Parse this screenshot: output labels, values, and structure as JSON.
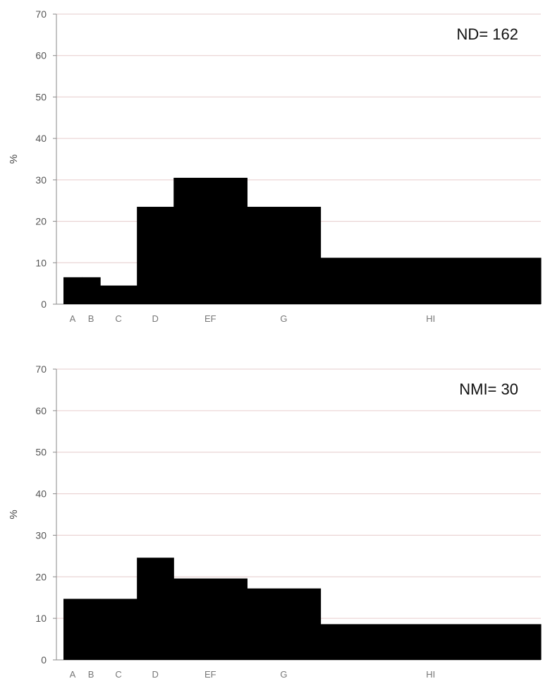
{
  "chart_data": [
    {
      "type": "bar",
      "annotation": "ND= 162",
      "ylabel": "%",
      "ylim": [
        0,
        70
      ],
      "yticks": [
        0,
        10,
        20,
        30,
        40,
        50,
        60,
        70
      ],
      "grid": true,
      "categories": [
        "A",
        "B",
        "C",
        "D",
        "EF",
        "G",
        "HI"
      ],
      "x_edges": [
        0,
        0.5,
        1.0,
        2.0,
        3.0,
        5.0,
        7.0,
        13.0
      ],
      "values": [
        6.5,
        6.5,
        4.5,
        23.5,
        30.5,
        23.5,
        11.2
      ],
      "color": "#000000"
    },
    {
      "type": "bar",
      "annotation": "NMI= 30",
      "ylabel": "%",
      "ylim": [
        0,
        70
      ],
      "yticks": [
        0,
        10,
        20,
        30,
        40,
        50,
        60,
        70
      ],
      "grid": true,
      "categories": [
        "A",
        "B",
        "C",
        "D",
        "EF",
        "G",
        "HI"
      ],
      "x_edges": [
        0,
        0.5,
        1.0,
        2.0,
        3.0,
        5.0,
        7.0,
        13.0
      ],
      "values": [
        14.7,
        14.7,
        14.7,
        24.6,
        19.6,
        17.2,
        8.6
      ],
      "color": "#000000"
    }
  ]
}
